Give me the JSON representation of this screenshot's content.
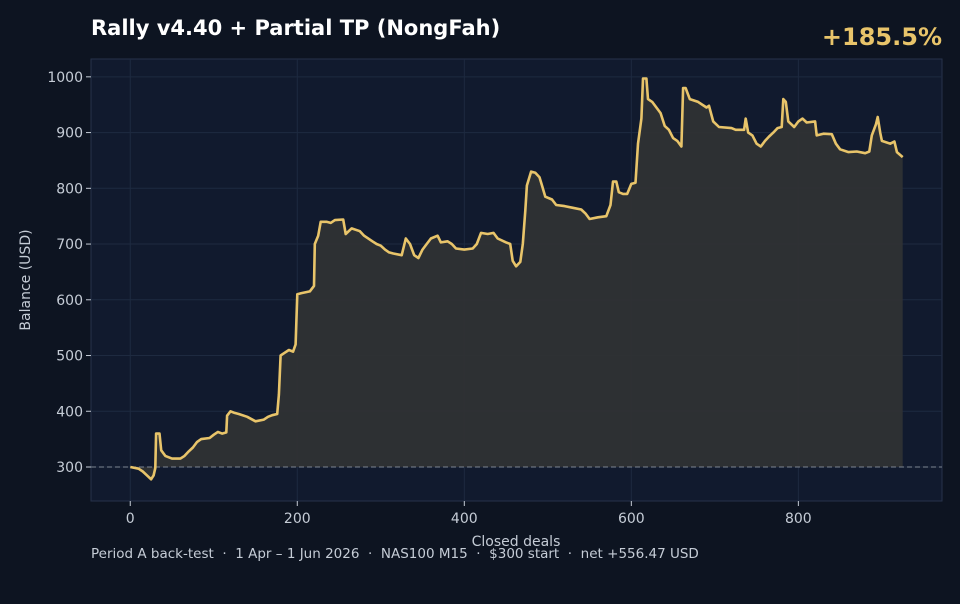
{
  "chart_data": {
    "type": "line",
    "title": "Rally v4.40 + Partial TP (NongFah)",
    "headline": "+185.5%",
    "footer": "Period A back-test  ·  1 Apr – 1 Jun 2026  ·  NAS100 M15  ·  $300 start  ·  net +556.47 USD",
    "xlabel": "Closed deals",
    "ylabel": "Balance (USD)",
    "color": "#e8c46a",
    "fill_color": "#2f3134",
    "baseline": 300,
    "grid": true,
    "xlim": [
      -47,
      972
    ],
    "ylim": [
      239,
      1032
    ],
    "xticks": [
      0,
      200,
      400,
      600,
      800
    ],
    "yticks": [
      300,
      400,
      500,
      600,
      700,
      800,
      900,
      1000
    ],
    "x": [
      0,
      10,
      15,
      20,
      25,
      28,
      30,
      31,
      35,
      37,
      42,
      50,
      60,
      65,
      70,
      75,
      80,
      85,
      95,
      100,
      105,
      110,
      115,
      116,
      120,
      125,
      130,
      140,
      150,
      160,
      165,
      170,
      176,
      178,
      180,
      185,
      190,
      195,
      198,
      200,
      205,
      215,
      220,
      221,
      225,
      228,
      235,
      240,
      245,
      255,
      258,
      265,
      275,
      280,
      290,
      295,
      300,
      305,
      310,
      315,
      325,
      330,
      335,
      340,
      345,
      350,
      355,
      360,
      368,
      372,
      380,
      385,
      390,
      400,
      410,
      415,
      420,
      428,
      435,
      440,
      450,
      455,
      458,
      462,
      467,
      470,
      473,
      475,
      480,
      485,
      490,
      493,
      497,
      505,
      510,
      520,
      530,
      540,
      545,
      550,
      560,
      570,
      575,
      578,
      582,
      585,
      590,
      595,
      600,
      605,
      608,
      612,
      614,
      618,
      620,
      625,
      630,
      635,
      640,
      645,
      650,
      655,
      660,
      662,
      665,
      670,
      680,
      690,
      693,
      698,
      705,
      720,
      725,
      735,
      737,
      740,
      745,
      750,
      755,
      760,
      765,
      770,
      775,
      780,
      782,
      785,
      788,
      795,
      800,
      805,
      810,
      820,
      822,
      830,
      840,
      845,
      850,
      860,
      870,
      880,
      885,
      888,
      893,
      895,
      898,
      900,
      910,
      915,
      918,
      925
    ],
    "values": [
      300,
      297,
      292,
      285,
      278,
      285,
      298,
      360,
      360,
      330,
      320,
      315,
      315,
      320,
      328,
      335,
      345,
      350,
      352,
      358,
      363,
      360,
      362,
      392,
      400,
      397,
      395,
      390,
      382,
      385,
      390,
      393,
      395,
      430,
      500,
      505,
      510,
      507,
      520,
      610,
      612,
      615,
      625,
      700,
      715,
      740,
      740,
      738,
      743,
      744,
      718,
      728,
      723,
      715,
      705,
      700,
      697,
      690,
      685,
      683,
      680,
      710,
      700,
      680,
      675,
      690,
      700,
      710,
      715,
      703,
      705,
      700,
      692,
      690,
      692,
      700,
      720,
      718,
      720,
      710,
      703,
      700,
      670,
      660,
      668,
      700,
      760,
      805,
      830,
      828,
      820,
      805,
      785,
      780,
      770,
      768,
      765,
      762,
      755,
      745,
      748,
      750,
      770,
      812,
      812,
      793,
      790,
      790,
      808,
      810,
      880,
      925,
      997,
      997,
      960,
      955,
      945,
      935,
      912,
      905,
      890,
      885,
      875,
      980,
      980,
      960,
      955,
      945,
      948,
      920,
      910,
      908,
      905,
      905,
      925,
      900,
      895,
      880,
      875,
      885,
      893,
      900,
      908,
      910,
      960,
      955,
      920,
      910,
      920,
      925,
      918,
      920,
      895,
      898,
      897,
      880,
      870,
      865,
      866,
      863,
      866,
      895,
      915,
      928,
      900,
      885,
      880,
      884,
      865,
      856
    ]
  }
}
